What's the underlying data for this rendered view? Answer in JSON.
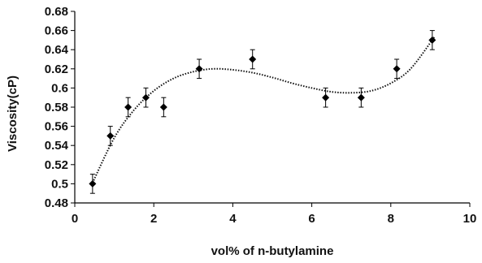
{
  "chart_data": {
    "type": "scatter",
    "title": "",
    "xlabel": "vol% of n-butylamine",
    "ylabel": "Viscosity(cP)",
    "xlim": [
      0,
      10
    ],
    "ylim": [
      0.48,
      0.68
    ],
    "x_ticks": [
      "0",
      "2",
      "4",
      "6",
      "8",
      "10"
    ],
    "y_ticks": [
      "0.48",
      "0.5",
      "0.52",
      "0.54",
      "0.56",
      "0.58",
      "0.6",
      "0.62",
      "0.64",
      "0.66",
      "0.68"
    ],
    "grid": false,
    "legend": "none",
    "marker": "diamond",
    "marker_color": "#000000",
    "points": [
      {
        "x": 0.45,
        "y": 0.5,
        "err": 0.01
      },
      {
        "x": 0.9,
        "y": 0.55,
        "err": 0.01
      },
      {
        "x": 1.35,
        "y": 0.58,
        "err": 0.01
      },
      {
        "x": 1.8,
        "y": 0.59,
        "err": 0.01
      },
      {
        "x": 2.25,
        "y": 0.58,
        "err": 0.01
      },
      {
        "x": 3.15,
        "y": 0.62,
        "err": 0.01
      },
      {
        "x": 4.5,
        "y": 0.63,
        "err": 0.01
      },
      {
        "x": 6.35,
        "y": 0.59,
        "err": 0.01
      },
      {
        "x": 7.25,
        "y": 0.59,
        "err": 0.01
      },
      {
        "x": 8.15,
        "y": 0.62,
        "err": 0.01
      },
      {
        "x": 9.05,
        "y": 0.65,
        "err": 0.01
      }
    ],
    "trendline": {
      "style": "dotted",
      "points": [
        {
          "x": 0.45,
          "y": 0.501
        },
        {
          "x": 1.0,
          "y": 0.548
        },
        {
          "x": 1.5,
          "y": 0.577
        },
        {
          "x": 2.0,
          "y": 0.597
        },
        {
          "x": 2.5,
          "y": 0.61
        },
        {
          "x": 3.0,
          "y": 0.617
        },
        {
          "x": 3.5,
          "y": 0.62
        },
        {
          "x": 4.0,
          "y": 0.619
        },
        {
          "x": 4.5,
          "y": 0.616
        },
        {
          "x": 5.0,
          "y": 0.611
        },
        {
          "x": 5.5,
          "y": 0.605
        },
        {
          "x": 6.0,
          "y": 0.6
        },
        {
          "x": 6.5,
          "y": 0.596
        },
        {
          "x": 7.0,
          "y": 0.595
        },
        {
          "x": 7.5,
          "y": 0.597
        },
        {
          "x": 8.0,
          "y": 0.605
        },
        {
          "x": 8.5,
          "y": 0.62
        },
        {
          "x": 9.1,
          "y": 0.653
        }
      ]
    }
  }
}
